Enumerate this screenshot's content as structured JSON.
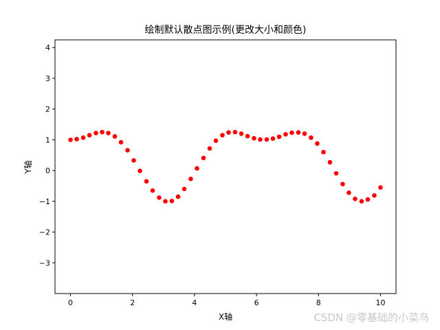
{
  "chart_data": {
    "type": "scatter",
    "title": "绘制默认散点图示例(更改大小和颜色)",
    "xlabel": "X轴",
    "ylabel": "Y轴",
    "xlim": [
      -0.5,
      10.5
    ],
    "ylim": [
      -4.0,
      4.25
    ],
    "x_ticks": [
      "0",
      "2",
      "4",
      "6",
      "8",
      "10"
    ],
    "y_ticks": [
      "−3",
      "−2",
      "−1",
      "0",
      "1",
      "2",
      "3",
      "4"
    ],
    "grid": false,
    "marker_color": "#ff0000",
    "series": [
      {
        "x": [
          0.0,
          0.2,
          0.41,
          0.61,
          0.82,
          1.02,
          1.22,
          1.43,
          1.63,
          1.84,
          2.04,
          2.24,
          2.45,
          2.65,
          2.86,
          3.06,
          3.27,
          3.47,
          3.67,
          3.88,
          4.08,
          4.29,
          4.49,
          4.69,
          4.9,
          5.1,
          5.31,
          5.51,
          5.71,
          5.92,
          6.12,
          6.33,
          6.53,
          6.73,
          6.94,
          7.14,
          7.35,
          7.55,
          7.76,
          7.96,
          8.16,
          8.37,
          8.57,
          8.78,
          8.98,
          9.18,
          9.39,
          9.59,
          9.8,
          10.0
        ],
        "y": [
          1.0,
          1.02,
          1.07,
          1.15,
          1.22,
          1.25,
          1.22,
          1.11,
          0.92,
          0.66,
          0.33,
          -0.01,
          -0.35,
          -0.65,
          -0.88,
          -1.0,
          -0.99,
          -0.85,
          -0.6,
          -0.27,
          0.07,
          0.41,
          0.72,
          0.97,
          1.15,
          1.24,
          1.25,
          1.2,
          1.12,
          1.05,
          1.01,
          1.01,
          1.04,
          1.1,
          1.18,
          1.23,
          1.24,
          1.2,
          1.07,
          0.88,
          0.6,
          0.27,
          -0.09,
          -0.44,
          -0.72,
          -0.92,
          -1.0,
          -0.94,
          -0.81,
          -0.55
        ]
      }
    ]
  },
  "watermark": "CSDN @零基础的小菜鸟"
}
